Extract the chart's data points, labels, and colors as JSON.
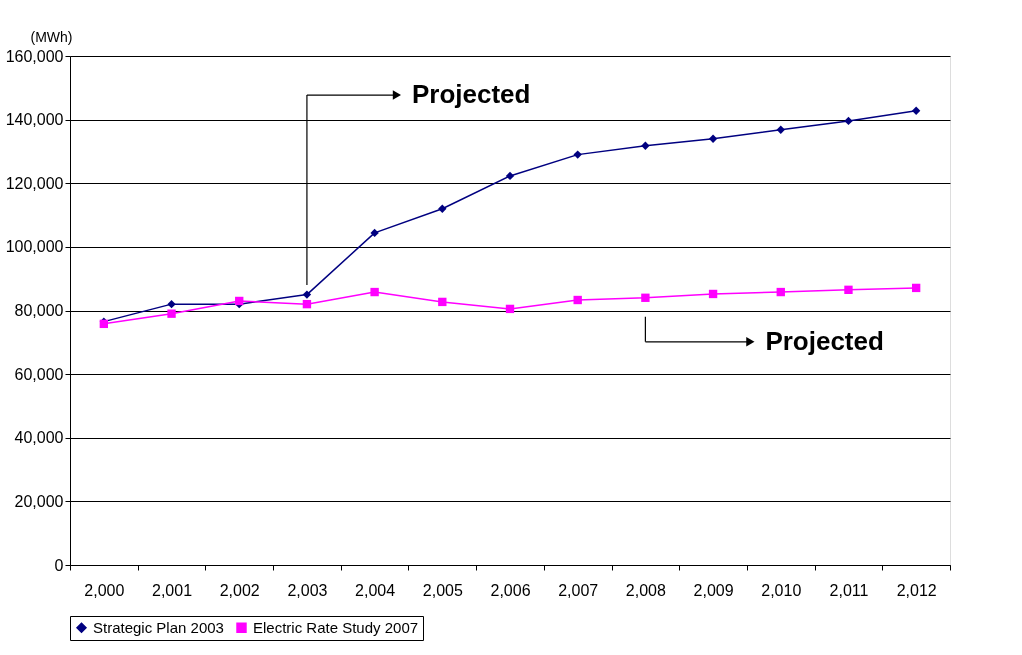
{
  "chart_data": {
    "type": "line",
    "ylabel": "(MWh)",
    "categories": [
      "2,000",
      "2,001",
      "2,002",
      "2,003",
      "2,004",
      "2,005",
      "2,006",
      "2,007",
      "2,008",
      "2,009",
      "2,010",
      "2,011",
      "2,012"
    ],
    "series": [
      {
        "name": "Strategic Plan 2003",
        "color": "#000080",
        "marker": "diamond",
        "values": [
          76500,
          82000,
          82000,
          85000,
          104400,
          112000,
          122300,
          129000,
          131800,
          134000,
          136800,
          139600,
          142800
        ]
      },
      {
        "name": "Electric Rate Study 2007",
        "color": "#ff00ff",
        "marker": "square",
        "values": [
          75800,
          79000,
          83000,
          82000,
          85800,
          82700,
          80500,
          83300,
          84000,
          85200,
          85800,
          86500,
          87100
        ]
      }
    ],
    "ylim": [
      0,
      160000
    ],
    "yticks": [
      0,
      {
        "value": 20000,
        "label": "20,000"
      },
      {
        "value": 40000,
        "label": "40,000"
      },
      {
        "value": 60000,
        "label": "60,000"
      },
      {
        "value": 80000,
        "label": "80,000"
      },
      {
        "value": 100000,
        "label": "100,000"
      },
      {
        "value": 120000,
        "label": "120,000"
      },
      {
        "value": 140000,
        "label": "140,000"
      },
      {
        "value": 160000,
        "label": "160,000"
      }
    ],
    "grid": "y",
    "legend": "bottom",
    "line_style": "solid",
    "annotations": [
      "Projected",
      "Projected"
    ]
  }
}
